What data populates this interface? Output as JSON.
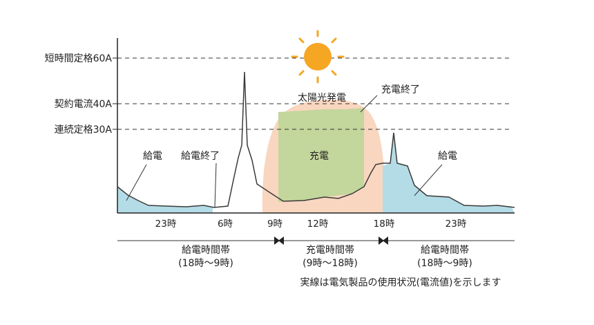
{
  "y_levels": [
    {
      "label": "短時間定格60A",
      "amps": 60
    },
    {
      "label": "契約電流40A",
      "amps": 40
    },
    {
      "label": "連続定格30A",
      "amps": 30
    }
  ],
  "x_ticks": [
    "23時",
    "6時",
    "9時",
    "12時",
    "18時",
    "23時"
  ],
  "regions": {
    "solar": "太陽光発電",
    "charge": "充電",
    "charge_end": "充電終了",
    "supply_left": "給電",
    "supply_end": "給電終了",
    "supply_right": "給電"
  },
  "periods": [
    {
      "name": "給電時間帯",
      "range": "(18時〜9時)"
    },
    {
      "name": "充電時間帯",
      "range": "(9時〜18時)"
    },
    {
      "name": "給電時間帯",
      "range": "(18時〜9時)"
    }
  ],
  "note": "実線は電気製品の使用状況(電流値)を示します",
  "colors": {
    "solar_fill": "#f9d6bf",
    "charge_fill": "#c3d69b",
    "supply_fill": "#b4dce6",
    "sun_fill": "#f5a623",
    "line": "#3a3a3a"
  }
}
